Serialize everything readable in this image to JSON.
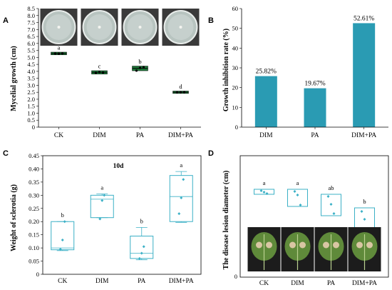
{
  "panels": {
    "A": {
      "letter": "A",
      "type": "box",
      "ylabel": "Mycelial growth (cm)",
      "categories": [
        "CK",
        "DIM",
        "PA",
        "DIM+PA"
      ],
      "ylim": [
        0,
        8.5
      ],
      "yticks": [
        "0",
        "0.5",
        "1.0",
        "1.5",
        "2.0",
        "2.5",
        "3.0",
        "3.5",
        "4.0",
        "4.5",
        "5.0",
        "5.5",
        "6.0",
        "6.5",
        "7.0",
        "7.5",
        "8.0",
        "8.5"
      ],
      "box_color": "#1f7a3a",
      "medians": [
        5.28,
        3.93,
        4.22,
        2.5
      ],
      "q1": [
        5.26,
        3.88,
        4.12,
        2.49
      ],
      "q3": [
        5.3,
        3.97,
        4.3,
        2.51
      ],
      "points": [
        [
          5.28,
          5.27,
          5.29
        ],
        [
          3.9,
          3.95,
          3.92
        ],
        [
          4.05,
          4.25,
          4.3
        ],
        [
          2.5,
          2.5,
          2.51
        ]
      ],
      "sig_letters": [
        "a",
        "c",
        "b",
        "d"
      ]
    },
    "B": {
      "letter": "B",
      "type": "bar",
      "ylabel": "Growth inhibition rate (%)",
      "categories": [
        "DIM",
        "PA",
        "DIM+PA"
      ],
      "values": [
        25.82,
        19.67,
        52.61
      ],
      "value_labels": [
        "25.82%",
        "19.67%",
        "52.61%"
      ],
      "ylim": [
        0,
        60
      ],
      "yticks": [
        "0",
        "10",
        "20",
        "30",
        "40",
        "50",
        "60"
      ],
      "bar_color": "#2a9bb3"
    },
    "C": {
      "letter": "C",
      "type": "box",
      "title": "10d",
      "ylabel": "Weight of sclerotia (g)",
      "categories": [
        "CK",
        "DIM",
        "PA",
        "DIM+PA"
      ],
      "ylim": [
        0,
        0.45
      ],
      "yticks": [
        "0",
        "0.05",
        "0.10",
        "0.15",
        "0.20",
        "0.25",
        "0.30",
        "0.35",
        "0.40",
        "0.45"
      ],
      "box_color": "#3bb0c6",
      "q1": [
        0.093,
        0.215,
        0.06,
        0.2
      ],
      "median": [
        0.1,
        0.285,
        0.08,
        0.295
      ],
      "q3": [
        0.2,
        0.3,
        0.145,
        0.375
      ],
      "whisker_low": [
        0.09,
        0.215,
        0.055,
        0.197
      ],
      "whisker_high": [
        0.2,
        0.305,
        0.178,
        0.39
      ],
      "points": [
        [
          0.095,
          0.13,
          0.2
        ],
        [
          0.21,
          0.28,
          0.3
        ],
        [
          0.06,
          0.08,
          0.105
        ],
        [
          0.23,
          0.29,
          0.36
        ]
      ],
      "sig_letters": [
        "b",
        "a",
        "b",
        "a"
      ]
    },
    "D": {
      "letter": "D",
      "type": "box",
      "ylabel": "The disease lesion diameter (cm)",
      "categories": [
        "CK",
        "DIM",
        "PA",
        "DIM+PA"
      ],
      "ytick_zero": "0",
      "box_color": "#3bb0c6",
      "sig_letters": [
        "a",
        "a",
        "ab",
        "b"
      ]
    }
  },
  "chart_data": [
    {
      "type": "box",
      "panel": "A",
      "ylabel": "Mycelial growth (cm)",
      "categories": [
        "CK",
        "DIM",
        "PA",
        "DIM+PA"
      ],
      "values": [
        5.28,
        3.93,
        4.22,
        2.5
      ],
      "significance": [
        "a",
        "c",
        "b",
        "d"
      ],
      "ylim": [
        0,
        8.5
      ]
    },
    {
      "type": "bar",
      "panel": "B",
      "ylabel": "Growth inhibition rate (%)",
      "categories": [
        "DIM",
        "PA",
        "DIM+PA"
      ],
      "values": [
        25.82,
        19.67,
        52.61
      ],
      "ylim": [
        0,
        60
      ]
    },
    {
      "type": "box",
      "panel": "C",
      "title": "10d",
      "ylabel": "Weight of sclerotia (g)",
      "categories": [
        "CK",
        "DIM",
        "PA",
        "DIM+PA"
      ],
      "medians": [
        0.1,
        0.285,
        0.08,
        0.295
      ],
      "significance": [
        "b",
        "a",
        "b",
        "a"
      ],
      "ylim": [
        0,
        0.45
      ]
    },
    {
      "type": "box",
      "panel": "D",
      "ylabel": "The disease lesion diameter (cm)",
      "categories": [
        "CK",
        "DIM",
        "PA",
        "DIM+PA"
      ],
      "significance": [
        "a",
        "a",
        "ab",
        "b"
      ]
    }
  ]
}
